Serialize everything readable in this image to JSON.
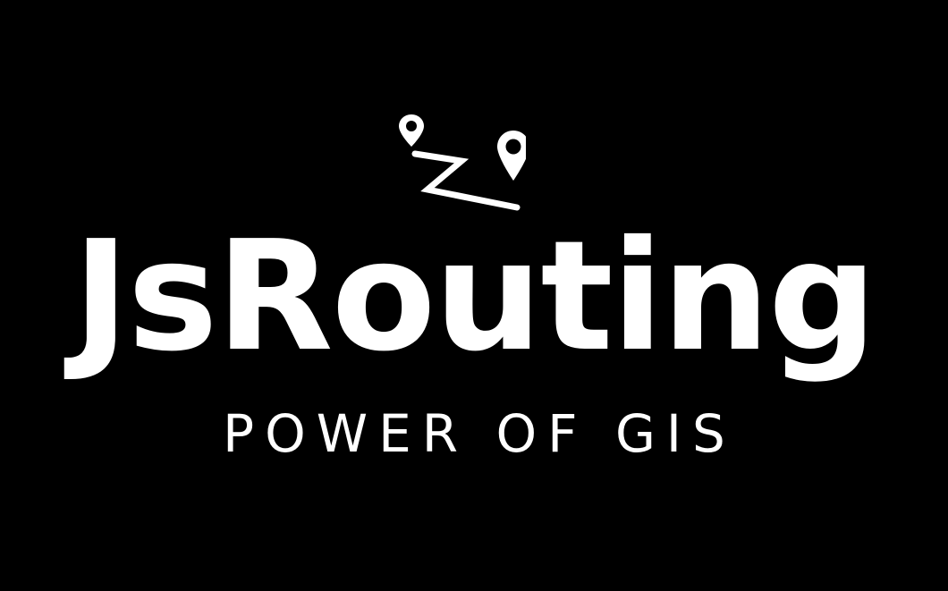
{
  "logo": {
    "icon": "route-pins-icon",
    "wordmark": "JsRouting",
    "tagline": "POWER OF GIS"
  },
  "colors": {
    "background": "#000000",
    "foreground": "#ffffff"
  }
}
